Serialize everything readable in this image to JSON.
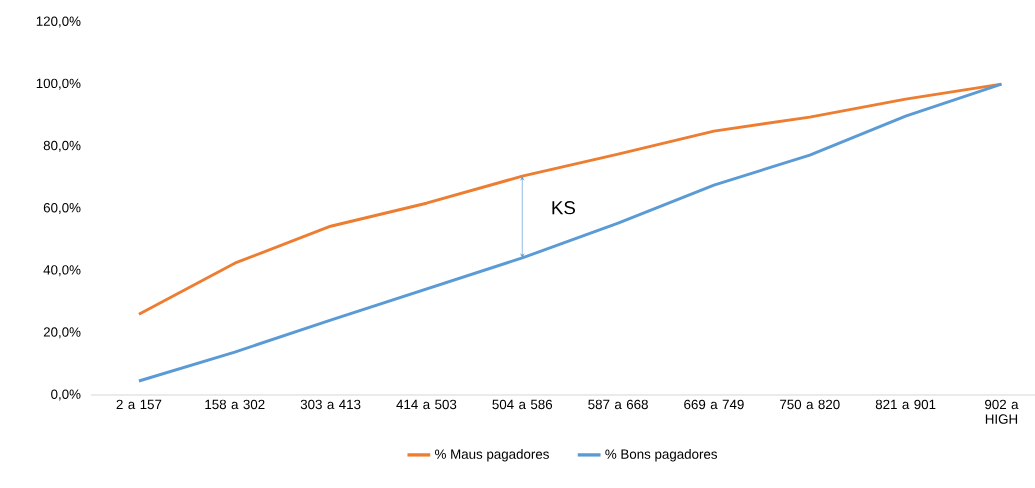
{
  "chart_data": {
    "type": "line",
    "categories": [
      "2 a 157",
      "158 a 302",
      "303 a 413",
      "414 a 503",
      "504 a 586",
      "587 a 668",
      "669 a 749",
      "750 a 820",
      "821 a 901",
      "902 a HIGH"
    ],
    "series": [
      {
        "name": "% Maus pagadores",
        "color": "#ed7d31",
        "values": [
          26.0,
          42.4,
          54.3,
          61.7,
          70.4,
          77.5,
          84.9,
          89.4,
          95.2,
          100.0
        ]
      },
      {
        "name": "% Bons pagadores",
        "color": "#5b9bd5",
        "values": [
          4.5,
          13.8,
          24.1,
          34.1,
          44.1,
          55.3,
          67.5,
          77.2,
          89.7,
          100.0
        ]
      }
    ],
    "ylim": [
      0,
      120
    ],
    "yticks": [
      {
        "value": 0,
        "label": "0,0%"
      },
      {
        "value": 20,
        "label": "20,0%"
      },
      {
        "value": 40,
        "label": "40,0%"
      },
      {
        "value": 60,
        "label": "60,0%"
      },
      {
        "value": 80,
        "label": "80,0%"
      },
      {
        "value": 100,
        "label": "100,0%"
      },
      {
        "value": 120,
        "label": "120,0%"
      }
    ],
    "annotations": [
      "KS"
    ],
    "grid": false,
    "legend": "bottom",
    "marker": "none",
    "line_style": "solid"
  }
}
